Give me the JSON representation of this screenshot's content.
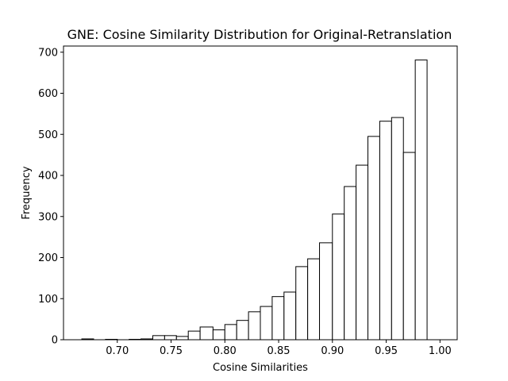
{
  "chart_data": {
    "type": "bar",
    "title": "GNE: Cosine Similarity Distribution for Original-Retranslation",
    "xlabel": "Cosine Similarities",
    "ylabel": "Frequency",
    "bin_edges": [
      0.667,
      0.678,
      0.689,
      0.7,
      0.711,
      0.722,
      0.733,
      0.744,
      0.755,
      0.766,
      0.777,
      0.789,
      0.8,
      0.811,
      0.822,
      0.833,
      0.844,
      0.855,
      0.866,
      0.877,
      0.888,
      0.9,
      0.911,
      0.922,
      0.933,
      0.944,
      0.955,
      0.966,
      0.977,
      0.988,
      1.0
    ],
    "values": [
      2,
      0,
      1,
      0,
      1,
      2,
      10,
      10,
      8,
      21,
      31,
      24,
      37,
      47,
      68,
      81,
      105,
      116,
      178,
      197,
      236,
      306,
      373,
      425,
      495,
      532,
      541,
      456,
      681,
      0
    ],
    "xlim": [
      0.65,
      1.016
    ],
    "ylim": [
      0,
      715
    ],
    "xticks": [
      0.7,
      0.75,
      0.8,
      0.85,
      0.9,
      0.95,
      1.0
    ],
    "xtick_labels": [
      "0.70",
      "0.75",
      "0.80",
      "0.85",
      "0.90",
      "0.95",
      "1.00"
    ],
    "yticks": [
      0,
      100,
      200,
      300,
      400,
      500,
      600,
      700
    ],
    "ytick_labels": [
      "0",
      "100",
      "200",
      "300",
      "400",
      "500",
      "600",
      "700"
    ],
    "grid": false,
    "bar_fill": "#ffffff",
    "bar_edge": "#000000"
  }
}
